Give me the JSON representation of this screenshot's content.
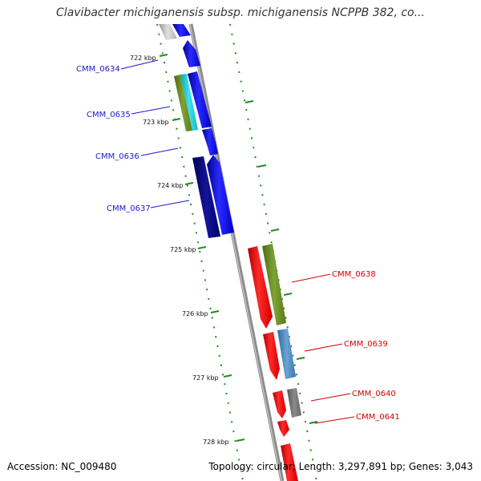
{
  "title": "Clavibacter michiganensis subsp. michiganensis NCPPB 382, co...",
  "footer": {
    "accession": "Accession: NC_009480",
    "topology": "Topology: circular; Length: 3,297,891 bp; Genes: 3,043"
  },
  "ticks": [
    "722 kbp",
    "723 kbp",
    "724 kbp",
    "725 kbp",
    "726 kbp",
    "727 kbp",
    "728 kbp"
  ],
  "genes_left": [
    "CMM_0634",
    "CMM_0635",
    "CMM_0636",
    "CMM_0637"
  ],
  "genes_right": [
    "CMM_0638",
    "CMM_0639",
    "CMM_0640",
    "CMM_0641"
  ],
  "colors": {
    "forward_strand": "#0000ff",
    "reverse_strand": "#ff0000",
    "olive": "#6b8e23",
    "cyan": "#1ac8d8",
    "navy": "#000080",
    "steelblue": "#4682b4",
    "gray": "#808080",
    "backbone": "#999999",
    "tick": "#228b22"
  }
}
